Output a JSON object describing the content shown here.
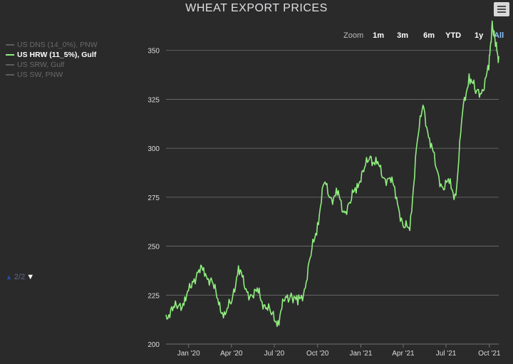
{
  "title": "WHEAT EXPORT PRICES",
  "menu_icon": "hamburger-menu-icon",
  "legend": {
    "items": [
      {
        "label": "US DNS (14_0%), PNW",
        "active": false
      },
      {
        "label": "US HRW (11_5%), Gulf",
        "active": true
      },
      {
        "label": "US SRW, Gulf",
        "active": false
      },
      {
        "label": "US SW, PNW",
        "active": false
      }
    ],
    "pager": "2/2"
  },
  "range_selector": {
    "label": "Zoom",
    "buttons": [
      "1m",
      "3m",
      "6m",
      "YTD",
      "1y",
      "All"
    ],
    "selected": "All"
  },
  "chart_data": {
    "type": "line",
    "title": "WHEAT EXPORT PRICES",
    "xlabel": "",
    "ylabel": "",
    "x_ticks": [
      "Jan '20",
      "Apr '20",
      "Jul '20",
      "Oct '20",
      "Jan '21",
      "Apr '21",
      "Jul '21",
      "Oct '21"
    ],
    "y_ticks": [
      200,
      225,
      250,
      275,
      300,
      325,
      350
    ],
    "ylim": [
      200,
      355
    ],
    "xlim": [
      "2019-11-14",
      "2021-10-21"
    ],
    "grid": true,
    "line_color": "#90ee7e",
    "series": [
      {
        "name": "US HRW (11_5%), Gulf",
        "x": [
          "2019-11-14",
          "2019-11-28",
          "2019-12-12",
          "2019-12-26",
          "2020-01-09",
          "2020-01-23",
          "2020-02-06",
          "2020-02-20",
          "2020-03-05",
          "2020-03-19",
          "2020-04-02",
          "2020-04-16",
          "2020-04-30",
          "2020-05-14",
          "2020-05-28",
          "2020-06-11",
          "2020-06-25",
          "2020-07-09",
          "2020-07-23",
          "2020-08-06",
          "2020-08-20",
          "2020-09-03",
          "2020-09-17",
          "2020-10-01",
          "2020-10-15",
          "2020-10-29",
          "2020-11-12",
          "2020-11-26",
          "2020-12-10",
          "2020-12-24",
          "2021-01-07",
          "2021-01-21",
          "2021-02-04",
          "2021-02-18",
          "2021-03-04",
          "2021-03-18",
          "2021-04-01",
          "2021-04-15",
          "2021-04-29",
          "2021-05-13",
          "2021-05-27",
          "2021-06-10",
          "2021-06-24",
          "2021-07-08",
          "2021-07-22",
          "2021-08-05",
          "2021-08-19",
          "2021-09-02",
          "2021-09-16",
          "2021-09-30",
          "2021-10-07",
          "2021-10-14",
          "2021-10-21"
        ],
        "values": [
          215,
          217,
          220,
          222,
          232,
          238,
          236,
          232,
          220,
          215,
          222,
          240,
          228,
          225,
          226,
          220,
          215,
          212,
          222,
          226,
          220,
          228,
          245,
          262,
          282,
          275,
          276,
          268,
          272,
          282,
          288,
          296,
          292,
          285,
          285,
          275,
          260,
          258,
          300,
          322,
          305,
          290,
          280,
          282,
          276,
          318,
          338,
          328,
          330,
          340,
          365,
          352,
          347
        ]
      }
    ]
  }
}
